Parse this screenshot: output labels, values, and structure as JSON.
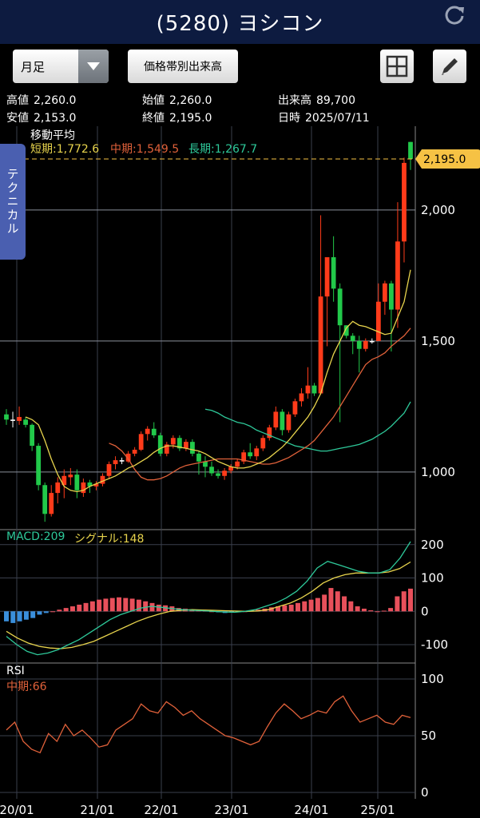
{
  "header": {
    "title": "(5280) ヨシコン",
    "refresh_icon": "refresh-icon"
  },
  "toolbar": {
    "period": "月足",
    "volume_button": "価格帯別出来高",
    "grid_icon": "grid-icon",
    "draw_icon": "pencil-icon"
  },
  "quote": {
    "high_label": "高値",
    "high": "2,260.0",
    "open_label": "始値",
    "open": "2,260.0",
    "volume_label": "出来高",
    "volume": "89,700",
    "low_label": "安値",
    "low": "2,153.0",
    "close_label": "終値",
    "close": "2,195.0",
    "date_label": "日時",
    "date": "2025/07/11"
  },
  "tech_tab": "テクニカル",
  "ma": {
    "title": "移動平均",
    "short": "短期:1,772.6",
    "mid": "中期:1,549.5",
    "long": "長期:1,267.7"
  },
  "macd": {
    "macd_label": "MACD:209",
    "signal_label": "シグナル:148"
  },
  "rsi": {
    "title": "RSI",
    "mid_label": "中期:66"
  },
  "colors": {
    "up": "#ff3b1a",
    "down": "#22c94a",
    "ma_short": "#e8d44d",
    "ma_mid": "#e0613a",
    "ma_long": "#2ec99a",
    "macd": "#2ec99a",
    "signal": "#e8d44d",
    "hist_pos": "#e8505b",
    "hist_neg": "#3a8fdc",
    "rsi": "#e0613a",
    "price_tag": "#f6c244"
  },
  "chart_data": {
    "type": "candlestick",
    "x_ticks": [
      "20/01",
      "21/01",
      "22/01",
      "23/01",
      "24/01",
      "25/01"
    ],
    "price_axis": [
      "1,000",
      "1,500",
      "2,000"
    ],
    "price_ylim": [
      780,
      2320
    ],
    "current_price_tag": "2,195.0",
    "current_price": 2195,
    "macd_axis": [
      "200",
      "100",
      "0",
      "-100"
    ],
    "macd_ylim": [
      -155,
      245
    ],
    "rsi_axis": [
      "100",
      "50",
      "0"
    ],
    "rsi_ylim": [
      0,
      100
    ],
    "candles_ohlc": [
      [
        1220,
        1240,
        1180,
        1200
      ],
      [
        1200,
        1230,
        1170,
        1195
      ],
      [
        1195,
        1250,
        1180,
        1210
      ],
      [
        1200,
        1210,
        1170,
        1180
      ],
      [
        1180,
        1185,
        1080,
        1100
      ],
      [
        1100,
        1110,
        930,
        950
      ],
      [
        950,
        960,
        810,
        840
      ],
      [
        840,
        950,
        830,
        920
      ],
      [
        920,
        980,
        880,
        960
      ],
      [
        950,
        1010,
        900,
        985
      ],
      [
        980,
        1015,
        950,
        990
      ],
      [
        990,
        1010,
        900,
        930
      ],
      [
        920,
        975,
        905,
        960
      ],
      [
        960,
        970,
        920,
        945
      ],
      [
        945,
        965,
        930,
        955
      ],
      [
        955,
        995,
        945,
        985
      ],
      [
        985,
        1040,
        975,
        1030
      ],
      [
        1030,
        1060,
        1010,
        1045
      ],
      [
        1045,
        1055,
        1030,
        1040
      ],
      [
        1040,
        1080,
        1035,
        1070
      ],
      [
        1070,
        1095,
        1060,
        1085
      ],
      [
        1085,
        1155,
        1080,
        1145
      ],
      [
        1145,
        1175,
        1120,
        1165
      ],
      [
        1165,
        1190,
        1130,
        1140
      ],
      [
        1140,
        1150,
        1060,
        1070
      ],
      [
        1070,
        1115,
        1060,
        1105
      ],
      [
        1105,
        1140,
        1090,
        1130
      ],
      [
        1130,
        1140,
        1080,
        1090
      ],
      [
        1090,
        1125,
        1080,
        1115
      ],
      [
        1115,
        1125,
        1060,
        1070
      ],
      [
        1070,
        1080,
        990,
        1040
      ],
      [
        1040,
        1060,
        980,
        1020
      ],
      [
        1020,
        1040,
        985,
        995
      ],
      [
        995,
        1010,
        975,
        985
      ],
      [
        985,
        1015,
        970,
        1005
      ],
      [
        1005,
        1030,
        995,
        1020
      ],
      [
        1020,
        1050,
        1010,
        1040
      ],
      [
        1040,
        1085,
        1030,
        1075
      ],
      [
        1075,
        1110,
        1050,
        1060
      ],
      [
        1060,
        1100,
        1045,
        1090
      ],
      [
        1090,
        1140,
        1080,
        1130
      ],
      [
        1130,
        1180,
        1120,
        1170
      ],
      [
        1170,
        1250,
        1160,
        1230
      ],
      [
        1230,
        1240,
        1140,
        1160
      ],
      [
        1160,
        1230,
        1150,
        1220
      ],
      [
        1220,
        1280,
        1210,
        1270
      ],
      [
        1270,
        1320,
        1250,
        1300
      ],
      [
        1300,
        1400,
        1280,
        1330
      ],
      [
        1330,
        1340,
        1290,
        1300
      ],
      [
        1300,
        1980,
        1295,
        1670
      ],
      [
        1670,
        1720,
        1480,
        1820
      ],
      [
        1820,
        1900,
        1650,
        1700
      ],
      [
        1700,
        1720,
        1190,
        1560
      ],
      [
        1560,
        1560,
        1510,
        1520
      ],
      [
        1520,
        1530,
        1450,
        1500
      ],
      [
        1500,
        1520,
        1380,
        1470
      ],
      [
        1470,
        1510,
        1460,
        1500
      ],
      [
        1500,
        1510,
        1490,
        1500
      ],
      [
        1500,
        1720,
        1540,
        1650
      ],
      [
        1650,
        1730,
        1600,
        1720
      ],
      [
        1720,
        1730,
        1460,
        1620
      ],
      [
        1620,
        2030,
        1550,
        1880
      ],
      [
        1880,
        2200,
        1800,
        2180
      ],
      [
        2260,
        2260,
        2153,
        2195
      ]
    ],
    "ma_short": [
      1210,
      1200,
      1180,
      1120,
      1050,
      990,
      945,
      930,
      925,
      930,
      945,
      955,
      965,
      975,
      985,
      1000,
      1015,
      1025,
      1040,
      1055,
      1075,
      1090,
      1100,
      1100,
      1095,
      1090,
      1085,
      1080,
      1070,
      1055,
      1040,
      1030,
      1020,
      1015,
      1015,
      1020,
      1030,
      1040,
      1055,
      1075,
      1095,
      1120,
      1150,
      1180,
      1210,
      1250,
      1300,
      1380,
      1450,
      1500,
      1550,
      1575,
      1560,
      1555,
      1545,
      1535,
      1525,
      1530,
      1590,
      1650,
      1772
    ],
    "ma_mid": [
      1110,
      1100,
      1080,
      1050,
      1010,
      980,
      970,
      970,
      975,
      985,
      1000,
      1015,
      1025,
      1030,
      1035,
      1040,
      1045,
      1050,
      1050,
      1050,
      1050,
      1045,
      1040,
      1035,
      1030,
      1030,
      1035,
      1045,
      1055,
      1070,
      1085,
      1100,
      1120,
      1150,
      1180,
      1210,
      1250,
      1290,
      1330,
      1370,
      1410,
      1430,
      1440,
      1455,
      1480,
      1500,
      1520,
      1549
    ],
    "ma_long": [
      1240,
      1235,
      1225,
      1210,
      1200,
      1190,
      1185,
      1175,
      1160,
      1150,
      1140,
      1130,
      1120,
      1110,
      1100,
      1095,
      1090,
      1085,
      1080,
      1080,
      1085,
      1090,
      1095,
      1100,
      1105,
      1115,
      1125,
      1140,
      1155,
      1175,
      1200,
      1225,
      1268
    ],
    "macd_values": [
      -75,
      -100,
      -120,
      -130,
      -125,
      -115,
      -100,
      -85,
      -65,
      -45,
      -25,
      -10,
      0,
      10,
      15,
      12,
      8,
      5,
      3,
      2,
      0,
      -2,
      -3,
      0,
      5,
      15,
      25,
      40,
      60,
      90,
      130,
      150,
      140,
      130,
      120,
      115,
      115,
      125,
      160,
      209
    ],
    "signal_values": [
      -60,
      -80,
      -95,
      -105,
      -110,
      -112,
      -108,
      -100,
      -90,
      -75,
      -60,
      -45,
      -30,
      -18,
      -8,
      0,
      3,
      5,
      4,
      3,
      2,
      1,
      0,
      1,
      5,
      15,
      25,
      40,
      60,
      85,
      100,
      110,
      115,
      115,
      115,
      118,
      128,
      148
    ],
    "hist_values": [
      -30,
      -35,
      -30,
      -25,
      -20,
      -10,
      -5,
      0,
      5,
      10,
      15,
      20,
      25,
      30,
      35,
      38,
      40,
      42,
      40,
      38,
      35,
      30,
      25,
      20,
      18,
      15,
      10,
      8,
      5,
      3,
      2,
      0,
      -3,
      -5,
      -3,
      -2,
      0,
      3,
      5,
      8,
      12,
      15,
      18,
      20,
      25,
      30,
      35,
      40,
      50,
      70,
      60,
      45,
      30,
      15,
      8,
      3,
      0,
      2,
      10,
      45,
      60,
      68
    ],
    "rsi_values": [
      55,
      62,
      45,
      38,
      35,
      52,
      45,
      60,
      50,
      55,
      48,
      40,
      42,
      55,
      60,
      65,
      78,
      72,
      70,
      80,
      75,
      68,
      72,
      65,
      60,
      55,
      50,
      48,
      45,
      42,
      45,
      58,
      70,
      78,
      72,
      65,
      68,
      72,
      70,
      80,
      85,
      72,
      62,
      65,
      68,
      62,
      60,
      68,
      66
    ]
  }
}
